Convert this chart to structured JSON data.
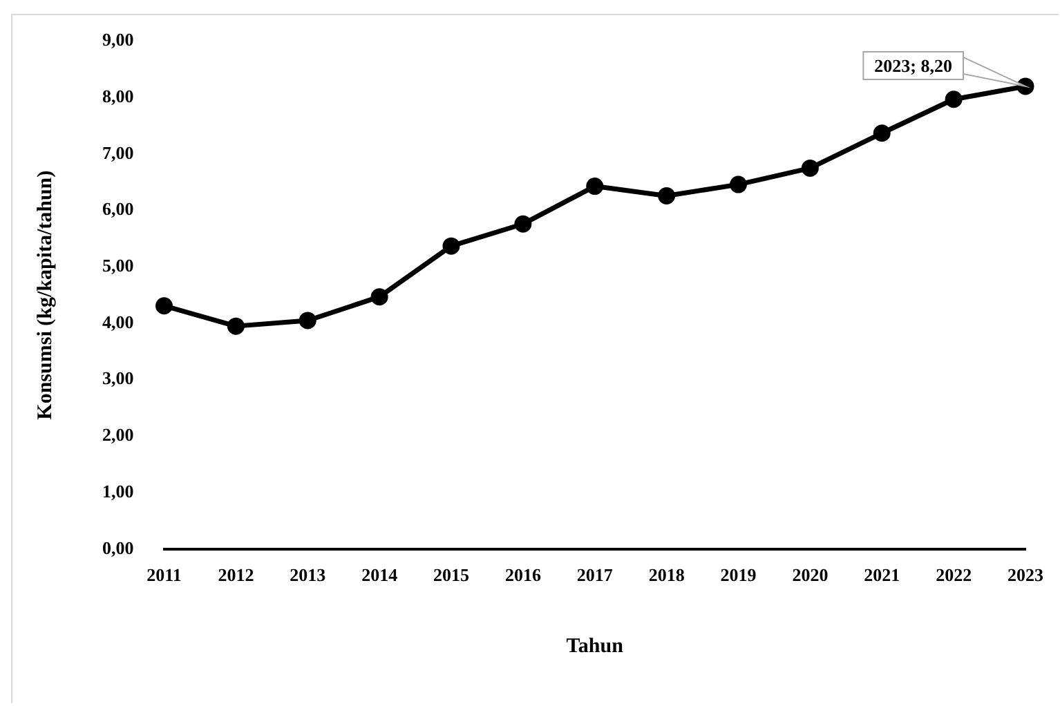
{
  "chart_data": {
    "type": "line",
    "xlabel": "Tahun",
    "ylabel": "Konsumsi (kg/kapita/tahun)",
    "categories": [
      "2011",
      "2012",
      "2013",
      "2014",
      "2015",
      "2016",
      "2017",
      "2018",
      "2019",
      "2020",
      "2021",
      "2022",
      "2023"
    ],
    "series": [
      {
        "color": "#000000",
        "values": [
          4.31,
          3.95,
          4.05,
          4.47,
          5.37,
          5.76,
          6.43,
          6.26,
          6.46,
          6.75,
          7.37,
          7.97,
          8.2
        ]
      }
    ],
    "ylim": [
      0,
      9
    ],
    "yticks": [
      {
        "value": 0,
        "label": "0,00"
      },
      {
        "value": 1,
        "label": "1,00"
      },
      {
        "value": 2,
        "label": "2,00"
      },
      {
        "value": 3,
        "label": "3,00"
      },
      {
        "value": 4,
        "label": "4,00"
      },
      {
        "value": 5,
        "label": "5,00"
      },
      {
        "value": 6,
        "label": "6,00"
      },
      {
        "value": 7,
        "label": "7,00"
      },
      {
        "value": 8,
        "label": "8,00"
      },
      {
        "value": 9,
        "label": "9,00"
      }
    ],
    "annotations": [
      {
        "text": "2023; 8,20",
        "x": "2023",
        "y": 8.2
      }
    ],
    "grid": false,
    "legend": false,
    "marker": "circle",
    "line_style": "solid"
  }
}
